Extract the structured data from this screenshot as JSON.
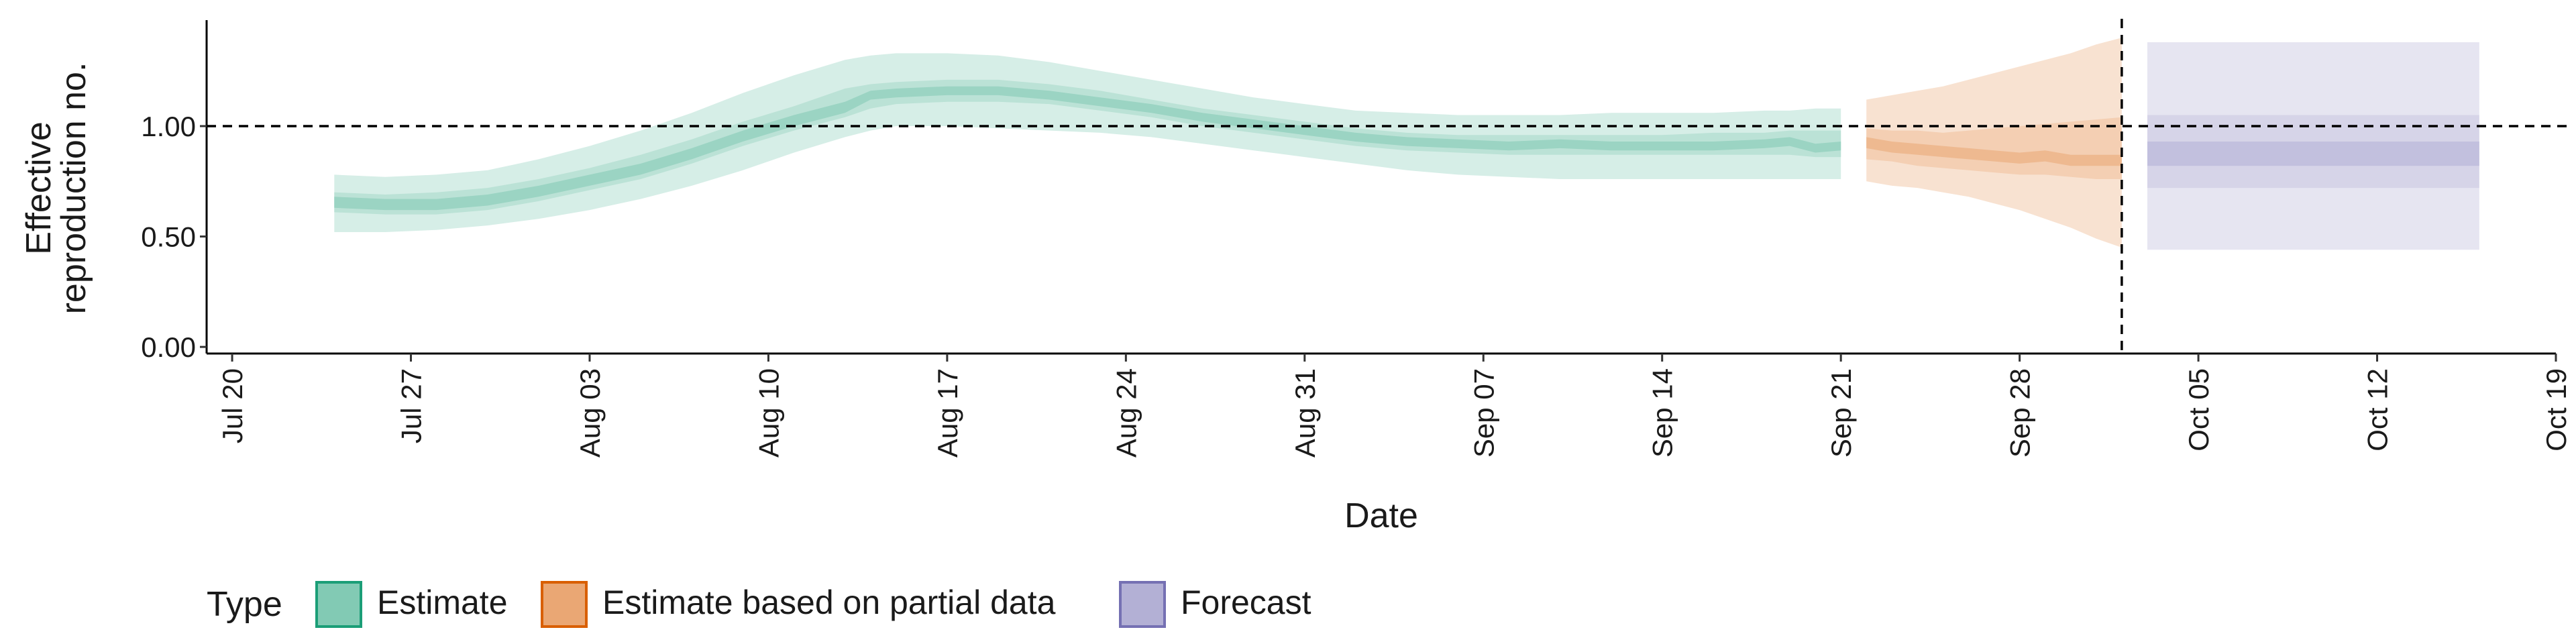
{
  "chart_data": {
    "type": "area",
    "title": "",
    "xlabel": "Date",
    "ylabel_lines": [
      "Effective",
      "reproduction no."
    ],
    "xlim": [
      "2020-07-19",
      "2020-10-19"
    ],
    "ylim": [
      -0.03,
      1.48
    ],
    "x_ticks": [
      {
        "date": "2020-07-20",
        "label": "Jul 20"
      },
      {
        "date": "2020-07-27",
        "label": "Jul 27"
      },
      {
        "date": "2020-08-03",
        "label": "Aug 03"
      },
      {
        "date": "2020-08-10",
        "label": "Aug 10"
      },
      {
        "date": "2020-08-17",
        "label": "Aug 17"
      },
      {
        "date": "2020-08-24",
        "label": "Aug 24"
      },
      {
        "date": "2020-08-31",
        "label": "Aug 31"
      },
      {
        "date": "2020-09-07",
        "label": "Sep 07"
      },
      {
        "date": "2020-09-14",
        "label": "Sep 14"
      },
      {
        "date": "2020-09-21",
        "label": "Sep 21"
      },
      {
        "date": "2020-09-28",
        "label": "Sep 28"
      },
      {
        "date": "2020-10-05",
        "label": "Oct 05"
      },
      {
        "date": "2020-10-12",
        "label": "Oct 12"
      },
      {
        "date": "2020-10-19",
        "label": "Oct 19"
      }
    ],
    "y_ticks": [
      {
        "value": 0,
        "label": "0.00"
      },
      {
        "value": 0.5,
        "label": "0.50"
      },
      {
        "value": 1,
        "label": "1.00"
      }
    ],
    "reference_hline": 1.0,
    "reference_vline": "2020-10-02",
    "legend_title": "Type",
    "legend_position": "bottom-left",
    "grid": false,
    "series": [
      {
        "name": "Estimate",
        "color": "#1b9e77",
        "x": [
          "2020-07-24",
          "2020-07-26",
          "2020-07-28",
          "2020-07-30",
          "2020-08-01",
          "2020-08-03",
          "2020-08-05",
          "2020-08-07",
          "2020-08-09",
          "2020-08-11",
          "2020-08-13",
          "2020-08-14",
          "2020-08-15",
          "2020-08-17",
          "2020-08-19",
          "2020-08-21",
          "2020-08-23",
          "2020-08-25",
          "2020-08-27",
          "2020-08-29",
          "2020-08-31",
          "2020-09-02",
          "2020-09-04",
          "2020-09-06",
          "2020-09-08",
          "2020-09-10",
          "2020-09-12",
          "2020-09-14",
          "2020-09-16",
          "2020-09-18",
          "2020-09-19",
          "2020-09-20",
          "2020-09-21"
        ],
        "lower_90": [
          0.52,
          0.52,
          0.53,
          0.55,
          0.58,
          0.62,
          0.67,
          0.73,
          0.8,
          0.88,
          0.95,
          0.98,
          1.0,
          1.0,
          0.99,
          0.98,
          0.97,
          0.95,
          0.92,
          0.89,
          0.86,
          0.83,
          0.8,
          0.78,
          0.77,
          0.76,
          0.76,
          0.76,
          0.76,
          0.76,
          0.76,
          0.76,
          0.76
        ],
        "lower_50": [
          0.61,
          0.6,
          0.6,
          0.62,
          0.66,
          0.71,
          0.76,
          0.83,
          0.91,
          0.98,
          1.04,
          1.08,
          1.1,
          1.11,
          1.11,
          1.1,
          1.07,
          1.04,
          1.0,
          0.97,
          0.94,
          0.91,
          0.89,
          0.88,
          0.87,
          0.87,
          0.87,
          0.87,
          0.87,
          0.87,
          0.87,
          0.86,
          0.86
        ],
        "lower_20": [
          0.63,
          0.62,
          0.62,
          0.64,
          0.68,
          0.73,
          0.78,
          0.85,
          0.93,
          1.0,
          1.06,
          1.12,
          1.13,
          1.14,
          1.14,
          1.12,
          1.09,
          1.06,
          1.02,
          0.99,
          0.96,
          0.93,
          0.91,
          0.9,
          0.89,
          0.9,
          0.89,
          0.89,
          0.89,
          0.9,
          0.91,
          0.88,
          0.89
        ],
        "upper_20": [
          0.68,
          0.67,
          0.67,
          0.69,
          0.73,
          0.78,
          0.83,
          0.9,
          0.98,
          1.05,
          1.11,
          1.16,
          1.17,
          1.18,
          1.18,
          1.16,
          1.13,
          1.1,
          1.06,
          1.03,
          1.0,
          0.97,
          0.95,
          0.94,
          0.93,
          0.94,
          0.93,
          0.93,
          0.93,
          0.94,
          0.95,
          0.92,
          0.93
        ],
        "upper_50": [
          0.7,
          0.69,
          0.7,
          0.72,
          0.76,
          0.81,
          0.87,
          0.94,
          1.02,
          1.09,
          1.17,
          1.19,
          1.2,
          1.21,
          1.21,
          1.19,
          1.16,
          1.12,
          1.08,
          1.05,
          1.02,
          0.99,
          0.97,
          0.96,
          0.96,
          0.96,
          0.96,
          0.96,
          0.97,
          0.97,
          0.98,
          0.98,
          0.98
        ],
        "upper_90": [
          0.78,
          0.77,
          0.78,
          0.8,
          0.85,
          0.91,
          0.98,
          1.06,
          1.15,
          1.23,
          1.3,
          1.32,
          1.33,
          1.33,
          1.32,
          1.29,
          1.25,
          1.21,
          1.17,
          1.13,
          1.1,
          1.07,
          1.06,
          1.05,
          1.05,
          1.05,
          1.06,
          1.06,
          1.06,
          1.07,
          1.07,
          1.08,
          1.08
        ]
      },
      {
        "name": "Estimate based on partial data",
        "color": "#d95f02",
        "x": [
          "2020-09-22",
          "2020-09-23",
          "2020-09-24",
          "2020-09-25",
          "2020-09-26",
          "2020-09-27",
          "2020-09-28",
          "2020-09-29",
          "2020-09-30",
          "2020-10-01",
          "2020-10-02"
        ],
        "lower_90": [
          0.75,
          0.73,
          0.72,
          0.7,
          0.68,
          0.65,
          0.62,
          0.58,
          0.54,
          0.49,
          0.45
        ],
        "lower_50": [
          0.85,
          0.84,
          0.82,
          0.81,
          0.8,
          0.79,
          0.78,
          0.78,
          0.77,
          0.76,
          0.76
        ],
        "lower_20": [
          0.9,
          0.88,
          0.87,
          0.86,
          0.85,
          0.84,
          0.83,
          0.84,
          0.82,
          0.82,
          0.82
        ],
        "upper_20": [
          0.95,
          0.93,
          0.92,
          0.91,
          0.9,
          0.89,
          0.88,
          0.89,
          0.87,
          0.87,
          0.87
        ],
        "upper_50": [
          0.99,
          0.98,
          0.98,
          0.97,
          0.98,
          0.99,
          1.0,
          1.01,
          1.02,
          1.03,
          1.04
        ],
        "upper_90": [
          1.12,
          1.14,
          1.16,
          1.18,
          1.21,
          1.24,
          1.27,
          1.3,
          1.33,
          1.37,
          1.4
        ]
      },
      {
        "name": "Forecast",
        "color": "#7570b3",
        "x": [
          "2020-10-03",
          "2020-10-16"
        ],
        "lower_90": [
          0.44,
          0.44
        ],
        "lower_50": [
          0.72,
          0.72
        ],
        "lower_20": [
          0.82,
          0.82
        ],
        "upper_20": [
          0.93,
          0.93
        ],
        "upper_50": [
          1.05,
          1.05
        ],
        "upper_90": [
          1.38,
          1.38
        ]
      }
    ]
  }
}
